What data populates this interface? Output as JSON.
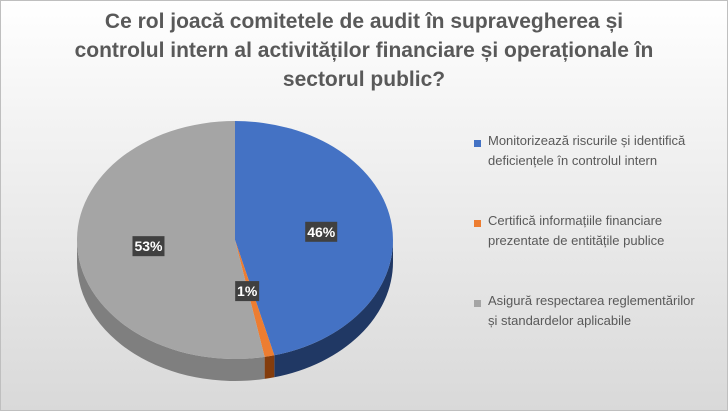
{
  "chart_data": {
    "type": "pie",
    "style": "3d",
    "title_lines": [
      "Ce rol joacă comitetele de audit în supravegherea și",
      "controlul intern al activităților financiare și operaționale în",
      "sectorul public?"
    ],
    "slices": [
      {
        "label_lines": [
          "Monitorizează riscurile și identifică",
          "deficiențele în controlul intern"
        ],
        "value": 46,
        "data_label": "46%",
        "color": "#4472c4",
        "side_color": "#203864"
      },
      {
        "label_lines": [
          "Certifică informațiile financiare",
          "prezentate de entitățile publice"
        ],
        "value": 1,
        "data_label": "1%",
        "color": "#ed7d31",
        "side_color": "#843c0c"
      },
      {
        "label_lines": [
          "Asigură respectarea reglementărilor",
          "și standardelor aplicabile"
        ],
        "value": 53,
        "data_label": "53%",
        "color": "#a5a5a5",
        "side_color": "#7f7f7f"
      }
    ],
    "legend_position": "right"
  }
}
